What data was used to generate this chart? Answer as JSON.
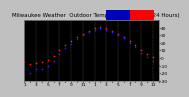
{
  "title": "Milwaukee Weather  Outdoor Temp. vs Wind Chill  (24 Hours)",
  "fig_bg_color": "#c0c0c0",
  "plot_bg_color": "#000000",
  "grid_color": "#606060",
  "legend_temp_color": "#ff0000",
  "legend_chill_color": "#0000bb",
  "ylim": [
    -30,
    50
  ],
  "xlim": [
    0,
    23
  ],
  "temp_x": [
    0,
    1,
    2,
    3,
    4,
    5,
    6,
    7,
    8,
    9,
    10,
    11,
    12,
    13,
    14,
    15,
    16,
    17,
    18,
    19,
    20,
    21,
    22,
    23
  ],
  "temp_y": [
    -5,
    -8,
    -6,
    -5,
    -2,
    3,
    10,
    17,
    22,
    28,
    32,
    36,
    39,
    41,
    39,
    36,
    32,
    28,
    23,
    17,
    11,
    5,
    1,
    -3
  ],
  "chill_x": [
    0,
    1,
    2,
    3,
    4,
    5,
    6,
    7,
    8,
    9,
    10,
    11,
    12,
    13,
    14,
    15,
    16,
    17,
    18,
    19,
    20,
    21,
    22,
    23
  ],
  "chill_y": [
    -16,
    -19,
    -15,
    -14,
    -10,
    -4,
    5,
    13,
    19,
    25,
    30,
    34,
    37,
    39,
    37,
    34,
    30,
    26,
    20,
    14,
    7,
    1,
    -4,
    -9
  ],
  "temp_color": "#ff2200",
  "chill_color": "#2222ff",
  "marker_size": 1.5,
  "title_fontsize": 4.0,
  "tick_fontsize": 3.2,
  "yticks": [
    40,
    30,
    20,
    10,
    0,
    -10,
    -20,
    -30
  ],
  "xtick_labels": [
    "1",
    "",
    "3",
    "",
    "5",
    "",
    "7",
    "",
    "9",
    "",
    "11",
    "",
    "1",
    "",
    "3",
    "",
    "5",
    "",
    "7",
    "",
    "9",
    "",
    "11",
    ""
  ]
}
